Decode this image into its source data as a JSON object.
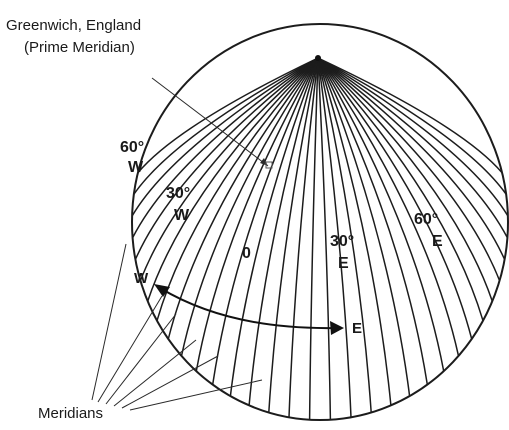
{
  "labels": {
    "greenwich_line1": "Greenwich, England",
    "greenwich_line2": "(Prime Meridian)",
    "lon_60w_value": "60°",
    "lon_60w_dir": "W",
    "lon_30w_value": "30°",
    "lon_30w_dir": "W",
    "lon_0": "0",
    "lon_30e_value": "30°",
    "lon_30e_dir": "E",
    "lon_60e_value": "60°",
    "lon_60e_dir": "E",
    "west": "W",
    "east": "E",
    "meridians": "Meridians"
  },
  "colors": {
    "line": "#1c1c1c",
    "background": "#ffffff"
  }
}
